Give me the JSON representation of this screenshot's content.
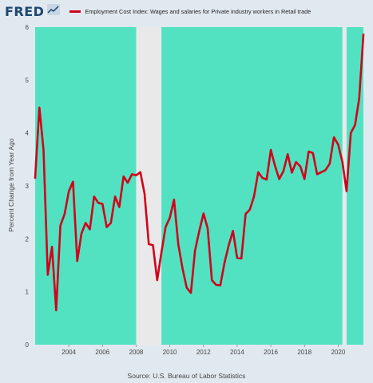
{
  "header": {
    "logo": "FRED",
    "logo_mark": "trend-line-icon"
  },
  "colors": {
    "page_bg": "#e1e9f0",
    "plot_bg": "#52e2c2",
    "recession": "#e9e9e9",
    "series": "#d0021b",
    "logo": "#1d4771"
  },
  "footer": {
    "source": "Source: U.S. Bureau of Labor Statistics"
  },
  "chart_data": {
    "type": "line",
    "title": "",
    "xlabel": "",
    "ylabel": "Percent Change from Year Ago",
    "xlim": [
      2002.0,
      2021.5
    ],
    "ylim": [
      0,
      6
    ],
    "x_ticks": [
      2004,
      2006,
      2008,
      2010,
      2012,
      2014,
      2016,
      2018,
      2020
    ],
    "y_ticks": [
      0,
      1,
      2,
      3,
      4,
      5,
      6
    ],
    "grid": false,
    "legend": "top",
    "recession_shading": [
      {
        "start": 2008.0,
        "end": 2009.5
      },
      {
        "start": 2020.25,
        "end": 2020.5
      }
    ],
    "series": [
      {
        "name": "Employment Cost Index: Wages and salaries for Private industry workers in Retail trade",
        "color": "#d0021b",
        "points": [
          [
            2002.0,
            3.15
          ],
          [
            2002.25,
            4.48
          ],
          [
            2002.5,
            3.68
          ],
          [
            2002.75,
            1.32
          ],
          [
            2003.0,
            1.85
          ],
          [
            2003.25,
            0.65
          ],
          [
            2003.5,
            2.25
          ],
          [
            2003.75,
            2.47
          ],
          [
            2004.0,
            2.9
          ],
          [
            2004.25,
            3.08
          ],
          [
            2004.5,
            1.58
          ],
          [
            2004.75,
            2.1
          ],
          [
            2005.0,
            2.3
          ],
          [
            2005.25,
            2.18
          ],
          [
            2005.5,
            2.8
          ],
          [
            2005.75,
            2.68
          ],
          [
            2006.0,
            2.66
          ],
          [
            2006.25,
            2.22
          ],
          [
            2006.5,
            2.3
          ],
          [
            2006.75,
            2.8
          ],
          [
            2007.0,
            2.6
          ],
          [
            2007.25,
            3.18
          ],
          [
            2007.5,
            3.06
          ],
          [
            2007.75,
            3.22
          ],
          [
            2008.0,
            3.2
          ],
          [
            2008.25,
            3.26
          ],
          [
            2008.5,
            2.85
          ],
          [
            2008.75,
            1.9
          ],
          [
            2009.0,
            1.88
          ],
          [
            2009.25,
            1.22
          ],
          [
            2009.5,
            1.74
          ],
          [
            2009.75,
            2.22
          ],
          [
            2010.0,
            2.4
          ],
          [
            2010.25,
            2.74
          ],
          [
            2010.5,
            1.9
          ],
          [
            2010.75,
            1.45
          ],
          [
            2011.0,
            1.08
          ],
          [
            2011.25,
            0.98
          ],
          [
            2011.5,
            1.78
          ],
          [
            2011.75,
            2.15
          ],
          [
            2012.0,
            2.48
          ],
          [
            2012.25,
            2.2
          ],
          [
            2012.5,
            1.22
          ],
          [
            2012.75,
            1.13
          ],
          [
            2013.0,
            1.12
          ],
          [
            2013.25,
            1.55
          ],
          [
            2013.5,
            1.88
          ],
          [
            2013.75,
            2.15
          ],
          [
            2014.0,
            1.64
          ],
          [
            2014.25,
            1.63
          ],
          [
            2014.5,
            2.47
          ],
          [
            2014.75,
            2.55
          ],
          [
            2015.0,
            2.8
          ],
          [
            2015.25,
            3.26
          ],
          [
            2015.5,
            3.15
          ],
          [
            2015.75,
            3.12
          ],
          [
            2016.0,
            3.68
          ],
          [
            2016.25,
            3.38
          ],
          [
            2016.5,
            3.13
          ],
          [
            2016.75,
            3.28
          ],
          [
            2017.0,
            3.6
          ],
          [
            2017.25,
            3.25
          ],
          [
            2017.5,
            3.45
          ],
          [
            2017.75,
            3.37
          ],
          [
            2018.0,
            3.13
          ],
          [
            2018.25,
            3.65
          ],
          [
            2018.5,
            3.62
          ],
          [
            2018.75,
            3.22
          ],
          [
            2019.0,
            3.26
          ],
          [
            2019.25,
            3.3
          ],
          [
            2019.5,
            3.42
          ],
          [
            2019.75,
            3.92
          ],
          [
            2020.0,
            3.78
          ],
          [
            2020.25,
            3.45
          ],
          [
            2020.5,
            2.9
          ],
          [
            2020.75,
            4.0
          ],
          [
            2021.0,
            4.15
          ],
          [
            2021.25,
            4.65
          ],
          [
            2021.5,
            5.86
          ]
        ]
      }
    ]
  }
}
